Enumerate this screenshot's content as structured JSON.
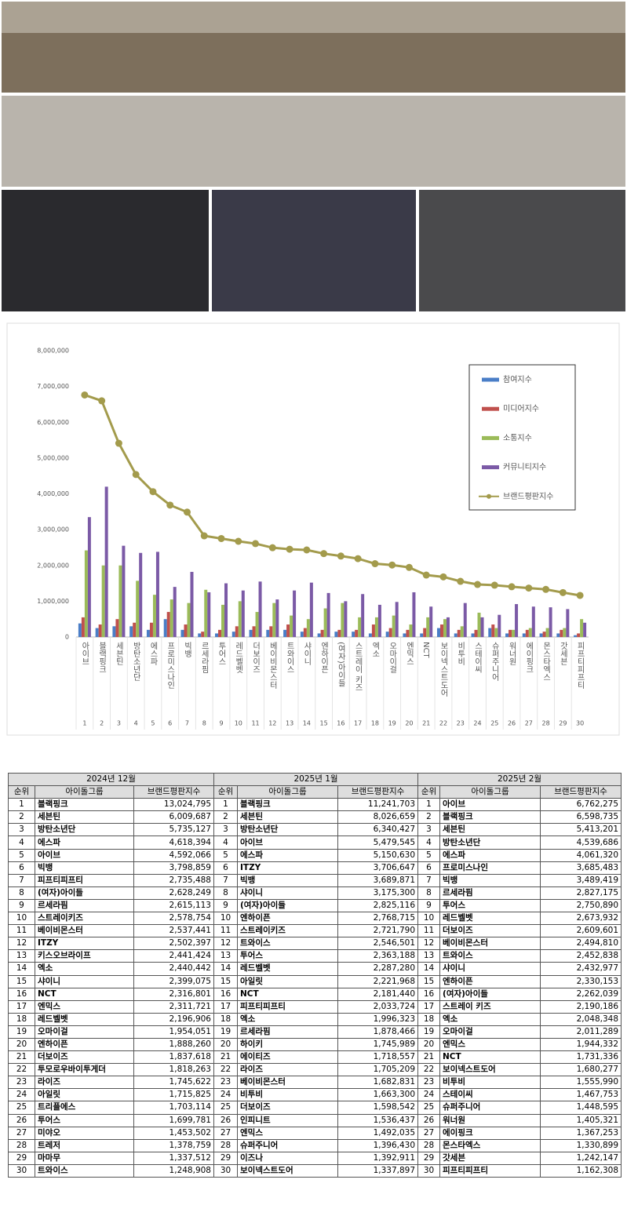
{
  "chart_data": {
    "type": "bar",
    "categories": [
      "아이브",
      "블랙핑크",
      "세븐틴",
      "방탄소년단",
      "에스파",
      "프로미스나인",
      "빅뱅",
      "르세라핌",
      "투어스",
      "레드벨벳",
      "더보이즈",
      "베이비몬스터",
      "트와이스",
      "샤이니",
      "엔하이픈",
      "(여자)아이들",
      "스트레이 키즈",
      "엑소",
      "오마이걸",
      "엔믹스",
      "NCT",
      "보이넥스트도어",
      "비투비",
      "스테이씨",
      "슈퍼주니어",
      "워너원",
      "에이핑크",
      "몬스타엑스",
      "갓세븐",
      "피프티피프티"
    ],
    "category_numbers": [
      1,
      2,
      3,
      4,
      5,
      6,
      7,
      8,
      9,
      10,
      11,
      12,
      13,
      14,
      15,
      16,
      17,
      18,
      19,
      20,
      21,
      22,
      23,
      24,
      25,
      26,
      27,
      28,
      29,
      30
    ],
    "series": [
      {
        "name": "참여지수",
        "color": "#4a7ec7",
        "values": [
          380000,
          250000,
          300000,
          300000,
          200000,
          500000,
          200000,
          100000,
          100000,
          150000,
          200000,
          200000,
          200000,
          150000,
          100000,
          150000,
          150000,
          100000,
          150000,
          100000,
          100000,
          250000,
          100000,
          100000,
          250000,
          100000,
          100000,
          100000,
          100000,
          50000
        ]
      },
      {
        "name": "미디어지수",
        "color": "#c0504d",
        "values": [
          550000,
          350000,
          500000,
          400000,
          400000,
          700000,
          350000,
          150000,
          200000,
          300000,
          300000,
          300000,
          350000,
          250000,
          200000,
          200000,
          200000,
          350000,
          250000,
          200000,
          250000,
          350000,
          200000,
          200000,
          350000,
          200000,
          200000,
          150000,
          200000,
          100000
        ]
      },
      {
        "name": "소통지수",
        "color": "#9bbb59",
        "values": [
          2420000,
          2000000,
          2000000,
          1570000,
          1180000,
          1050000,
          950000,
          1320000,
          900000,
          1000000,
          700000,
          950000,
          600000,
          500000,
          800000,
          950000,
          550000,
          550000,
          600000,
          350000,
          550000,
          500000,
          300000,
          680000,
          250000,
          200000,
          250000,
          250000,
          250000,
          500000
        ]
      },
      {
        "name": "커뮤니티지수",
        "color": "#7b5aa6",
        "values": [
          3350000,
          4200000,
          2550000,
          2350000,
          2380000,
          1400000,
          1820000,
          1250000,
          1500000,
          1300000,
          1550000,
          1050000,
          1300000,
          1520000,
          1230000,
          1000000,
          1200000,
          900000,
          980000,
          1250000,
          850000,
          550000,
          950000,
          550000,
          620000,
          920000,
          850000,
          830000,
          780000,
          400000
        ]
      },
      {
        "name": "브랜드평판지수",
        "color": "#a39b4c",
        "type": "line",
        "values": [
          6762275,
          6598735,
          5413201,
          4539686,
          4061320,
          3685483,
          3489419,
          2827175,
          2750890,
          2673932,
          2609601,
          2494810,
          2452838,
          2432977,
          2330153,
          2262039,
          2190186,
          2048348,
          2011289,
          1944332,
          1731336,
          1680277,
          1555990,
          1467753,
          1448595,
          1405321,
          1367253,
          1330899,
          1242147,
          1162308
        ]
      }
    ],
    "ylim": [
      0,
      8000000
    ],
    "yticks": [
      {
        "value": 0,
        "label": "0"
      },
      {
        "value": 1000000,
        "label": "1,000,000"
      },
      {
        "value": 2000000,
        "label": "2,000,000"
      },
      {
        "value": 3000000,
        "label": "3,000,000"
      },
      {
        "value": 4000000,
        "label": "4,000,000"
      },
      {
        "value": 5000000,
        "label": "5,000,000"
      },
      {
        "value": 6000000,
        "label": "6,000,000"
      },
      {
        "value": 7000000,
        "label": "7,000,000"
      },
      {
        "value": 8000000,
        "label": "8,000,000"
      }
    ],
    "grid": false,
    "legend": "upper right"
  },
  "table": {
    "columns": [
      "순위",
      "아이돌그룹",
      "브랜드평판지수"
    ],
    "periods": [
      {
        "title": "2024년 12월",
        "rows": [
          [
            1,
            "블랙핑크",
            "13,024,795"
          ],
          [
            2,
            "세븐틴",
            "6,009,687"
          ],
          [
            3,
            "방탄소년단",
            "5,735,127"
          ],
          [
            4,
            "에스파",
            "4,618,394"
          ],
          [
            5,
            "아이브",
            "4,592,066"
          ],
          [
            6,
            "빅뱅",
            "3,798,859"
          ],
          [
            7,
            "피프티피프티",
            "2,735,488"
          ],
          [
            8,
            "(여자)아이들",
            "2,628,249"
          ],
          [
            9,
            "르세라핌",
            "2,615,113"
          ],
          [
            10,
            "스트레이키즈",
            "2,578,754"
          ],
          [
            11,
            "베이비몬스터",
            "2,537,441"
          ],
          [
            12,
            "ITZY",
            "2,502,397"
          ],
          [
            13,
            "키스오브라이프",
            "2,441,424"
          ],
          [
            14,
            "엑소",
            "2,440,442"
          ],
          [
            15,
            "샤이니",
            "2,399,075"
          ],
          [
            16,
            "NCT",
            "2,316,801"
          ],
          [
            17,
            "엔믹스",
            "2,311,721"
          ],
          [
            18,
            "레드벨벳",
            "2,196,906"
          ],
          [
            19,
            "오마이걸",
            "1,954,051"
          ],
          [
            20,
            "엔하이픈",
            "1,888,260"
          ],
          [
            21,
            "더보이즈",
            "1,837,618"
          ],
          [
            22,
            "투모로우바이투게더",
            "1,818,263"
          ],
          [
            23,
            "라이즈",
            "1,745,622"
          ],
          [
            24,
            "아일릿",
            "1,715,825"
          ],
          [
            25,
            "트리플에스",
            "1,703,114"
          ],
          [
            26,
            "투어스",
            "1,699,781"
          ],
          [
            27,
            "미야오",
            "1,453,502"
          ],
          [
            28,
            "트레저",
            "1,378,759"
          ],
          [
            29,
            "마마무",
            "1,337,512"
          ],
          [
            30,
            "트와이스",
            "1,248,908"
          ]
        ]
      },
      {
        "title": "2025년 1월",
        "rows": [
          [
            1,
            "블랙핑크",
            "11,241,703"
          ],
          [
            2,
            "세븐틴",
            "8,026,659"
          ],
          [
            3,
            "방탄소년단",
            "6,340,427"
          ],
          [
            4,
            "아이브",
            "5,479,545"
          ],
          [
            5,
            "에스파",
            "5,150,630"
          ],
          [
            6,
            "ITZY",
            "3,706,647"
          ],
          [
            7,
            "빅뱅",
            "3,689,871"
          ],
          [
            8,
            "샤이니",
            "3,175,300"
          ],
          [
            9,
            "(여자)아이들",
            "2,825,116"
          ],
          [
            10,
            "엔하이픈",
            "2,768,715"
          ],
          [
            11,
            "스트레이키즈",
            "2,721,790"
          ],
          [
            12,
            "트와이스",
            "2,546,501"
          ],
          [
            13,
            "투어스",
            "2,363,188"
          ],
          [
            14,
            "레드벨벳",
            "2,287,280"
          ],
          [
            15,
            "아일릿",
            "2,221,968"
          ],
          [
            16,
            "NCT",
            "2,181,440"
          ],
          [
            17,
            "피프티피프티",
            "2,033,724"
          ],
          [
            18,
            "엑소",
            "1,996,323"
          ],
          [
            19,
            "르세라핌",
            "1,878,466"
          ],
          [
            20,
            "하이키",
            "1,745,989"
          ],
          [
            21,
            "에이티즈",
            "1,718,557"
          ],
          [
            22,
            "라이즈",
            "1,705,209"
          ],
          [
            23,
            "베이비몬스터",
            "1,682,831"
          ],
          [
            24,
            "비투비",
            "1,663,300"
          ],
          [
            25,
            "더보이즈",
            "1,598,542"
          ],
          [
            26,
            "인피니트",
            "1,536,437"
          ],
          [
            27,
            "엔믹스",
            "1,492,035"
          ],
          [
            28,
            "슈퍼주니어",
            "1,396,430"
          ],
          [
            29,
            "이즈나",
            "1,392,911"
          ],
          [
            30,
            "보이넥스트도어",
            "1,337,897"
          ]
        ]
      },
      {
        "title": "2025년 2월",
        "rows": [
          [
            1,
            "아이브",
            "6,762,275"
          ],
          [
            2,
            "블랙핑크",
            "6,598,735"
          ],
          [
            3,
            "세븐틴",
            "5,413,201"
          ],
          [
            4,
            "방탄소년단",
            "4,539,686"
          ],
          [
            5,
            "에스파",
            "4,061,320"
          ],
          [
            6,
            "프로미스나인",
            "3,685,483"
          ],
          [
            7,
            "빅뱅",
            "3,489,419"
          ],
          [
            8,
            "르세라핌",
            "2,827,175"
          ],
          [
            9,
            "투어스",
            "2,750,890"
          ],
          [
            10,
            "레드벨벳",
            "2,673,932"
          ],
          [
            11,
            "더보이즈",
            "2,609,601"
          ],
          [
            12,
            "베이비몬스터",
            "2,494,810"
          ],
          [
            13,
            "트와이스",
            "2,452,838"
          ],
          [
            14,
            "샤이니",
            "2,432,977"
          ],
          [
            15,
            "엔하이픈",
            "2,330,153"
          ],
          [
            16,
            "(여자)아이들",
            "2,262,039"
          ],
          [
            17,
            "스트레이 키즈",
            "2,190,186"
          ],
          [
            18,
            "엑소",
            "2,048,348"
          ],
          [
            19,
            "오마이걸",
            "2,011,289"
          ],
          [
            20,
            "엔믹스",
            "1,944,332"
          ],
          [
            21,
            "NCT",
            "1,731,336"
          ],
          [
            22,
            "보이넥스트도어",
            "1,680,277"
          ],
          [
            23,
            "비투비",
            "1,555,990"
          ],
          [
            24,
            "스테이씨",
            "1,467,753"
          ],
          [
            25,
            "슈퍼주니어",
            "1,448,595"
          ],
          [
            26,
            "워너원",
            "1,405,321"
          ],
          [
            27,
            "에이핑크",
            "1,367,253"
          ],
          [
            28,
            "몬스타엑스",
            "1,330,899"
          ],
          [
            29,
            "갓세븐",
            "1,242,147"
          ],
          [
            30,
            "피프티피프티",
            "1,162,308"
          ]
        ]
      }
    ]
  }
}
